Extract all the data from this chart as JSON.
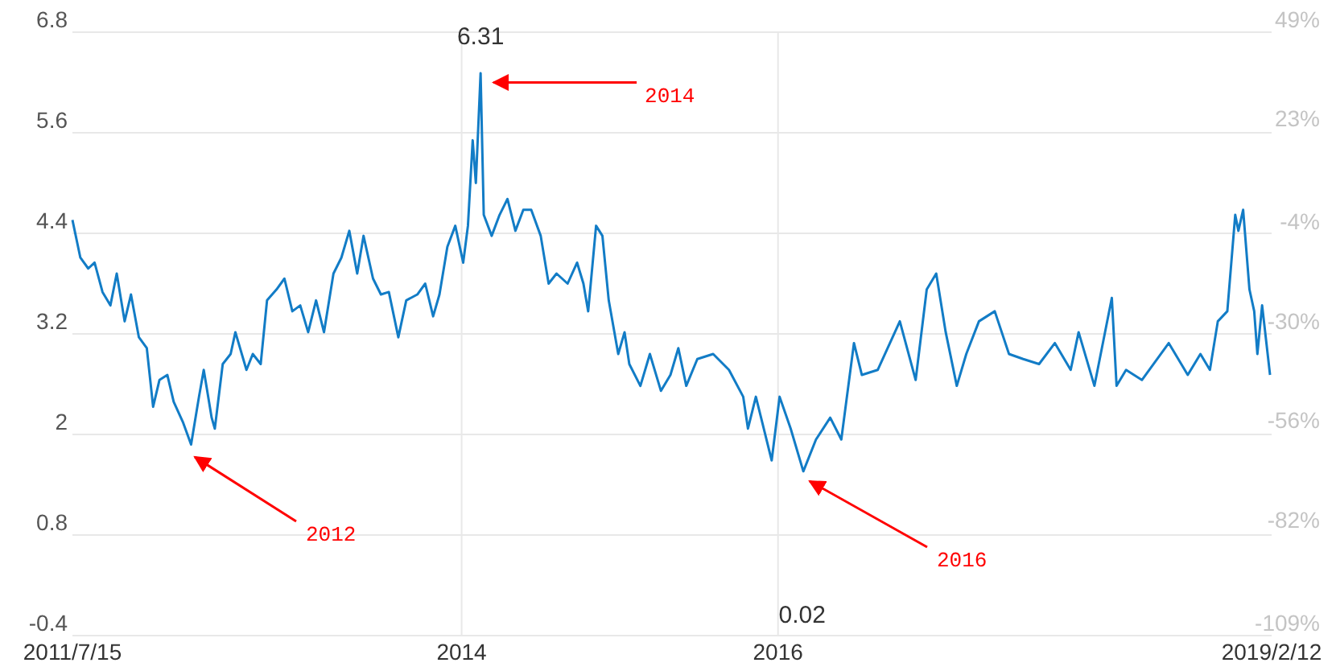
{
  "chart_data": {
    "type": "line",
    "color": "#127cc6",
    "line_style": "solid",
    "marker": "none",
    "grid": true,
    "x": [
      2011.54,
      2011.59,
      2011.64,
      2011.68,
      2011.73,
      2011.78,
      2011.82,
      2011.87,
      2011.91,
      2011.96,
      2012.01,
      2012.05,
      2012.09,
      2012.14,
      2012.18,
      2012.24,
      2012.29,
      2012.34,
      2012.37,
      2012.42,
      2012.44,
      2012.49,
      2012.54,
      2012.57,
      2012.64,
      2012.68,
      2012.73,
      2012.77,
      2012.83,
      2012.88,
      2012.93,
      2012.98,
      2013.03,
      2013.08,
      2013.13,
      2013.19,
      2013.24,
      2013.29,
      2013.34,
      2013.38,
      2013.44,
      2013.49,
      2013.54,
      2013.6,
      2013.65,
      2013.72,
      2013.77,
      2013.82,
      2013.86,
      2013.91,
      2013.96,
      2014.01,
      2014.04,
      2014.07,
      2014.09,
      2014.12,
      2014.14,
      2014.19,
      2014.24,
      2014.29,
      2014.34,
      2014.39,
      2014.44,
      2014.5,
      2014.55,
      2014.6,
      2014.67,
      2014.73,
      2014.77,
      2014.8,
      2014.85,
      2014.89,
      2014.93,
      2014.99,
      2015.03,
      2015.06,
      2015.13,
      2015.19,
      2015.26,
      2015.32,
      2015.37,
      2015.42,
      2015.49,
      2015.59,
      2015.69,
      2015.78,
      2015.81,
      2015.86,
      2015.96,
      2016.01,
      2016.08,
      2016.16,
      2016.24,
      2016.33,
      2016.4,
      2016.48,
      2016.53,
      2016.63,
      2016.77,
      2016.87,
      2016.94,
      2017.0,
      2017.06,
      2017.13,
      2017.19,
      2017.27,
      2017.37,
      2017.46,
      2017.55,
      2017.65,
      2017.75,
      2017.85,
      2017.9,
      2018.0,
      2018.11,
      2018.14,
      2018.2,
      2018.3,
      2018.47,
      2018.59,
      2018.67,
      2018.73,
      2018.78,
      2018.84,
      2018.89,
      2018.91,
      2018.94,
      2018.98,
      2019.01,
      2019.03,
      2019.06,
      2019.11
    ],
    "values": [
      4.56,
      4.11,
      3.98,
      4.05,
      3.7,
      3.54,
      3.92,
      3.35,
      3.67,
      3.16,
      3.03,
      2.33,
      2.65,
      2.71,
      2.39,
      2.14,
      1.88,
      2.45,
      2.77,
      2.2,
      2.07,
      2.84,
      2.96,
      3.22,
      2.77,
      2.96,
      2.84,
      3.6,
      3.73,
      3.86,
      3.47,
      3.54,
      3.22,
      3.6,
      3.22,
      3.92,
      4.11,
      4.43,
      3.92,
      4.37,
      3.86,
      3.67,
      3.7,
      3.16,
      3.6,
      3.67,
      3.8,
      3.41,
      3.67,
      4.24,
      4.49,
      4.05,
      4.49,
      5.51,
      5.0,
      6.31,
      4.62,
      4.37,
      4.62,
      4.81,
      4.43,
      4.68,
      4.68,
      4.37,
      3.8,
      3.92,
      3.8,
      4.05,
      3.8,
      3.47,
      4.49,
      4.37,
      3.6,
      2.96,
      3.22,
      2.84,
      2.58,
      2.96,
      2.52,
      2.71,
      3.03,
      2.58,
      2.9,
      2.96,
      2.77,
      2.45,
      2.07,
      2.45,
      1.69,
      2.45,
      2.07,
      1.56,
      1.94,
      2.2,
      1.94,
      3.09,
      2.71,
      2.77,
      3.35,
      2.65,
      3.73,
      3.92,
      3.22,
      2.58,
      2.96,
      3.35,
      3.47,
      2.96,
      2.9,
      2.84,
      3.09,
      2.77,
      3.22,
      2.58,
      3.63,
      2.58,
      2.77,
      2.65,
      3.09,
      2.71,
      2.96,
      2.77,
      3.35,
      3.47,
      4.62,
      4.43,
      4.68,
      3.73,
      3.47,
      2.96,
      3.54,
      2.71
    ],
    "xlim": [
      2011.54,
      2019.12
    ],
    "xticks": [
      {
        "value": 2011.54,
        "label": "2011/7/15"
      },
      2014,
      2016,
      {
        "value": 2019.12,
        "label": "2019/2/12"
      }
    ],
    "ylim": [
      -0.4,
      6.8
    ],
    "yticks": [
      -0.4,
      0.8,
      2,
      3.2,
      4.4,
      5.6,
      6.8
    ],
    "y2lim": [
      -109,
      49
    ],
    "y2ticks": [
      {
        "value": -109,
        "label": "-109%"
      },
      {
        "value": -82,
        "label": "-82%"
      },
      {
        "value": -56,
        "label": "-56%"
      },
      {
        "value": -30,
        "label": "-30%"
      },
      {
        "value": -4,
        "label": "-4%"
      },
      {
        "value": 23,
        "label": "23%"
      },
      {
        "value": 49,
        "label": "49%"
      }
    ],
    "annotations": [
      {
        "text": "6.31",
        "x": 2014.12,
        "y": 6.31
      },
      {
        "text": "2014",
        "x": 2014.14,
        "y": 6.2
      },
      "2012",
      "2016",
      "0.02"
    ]
  }
}
